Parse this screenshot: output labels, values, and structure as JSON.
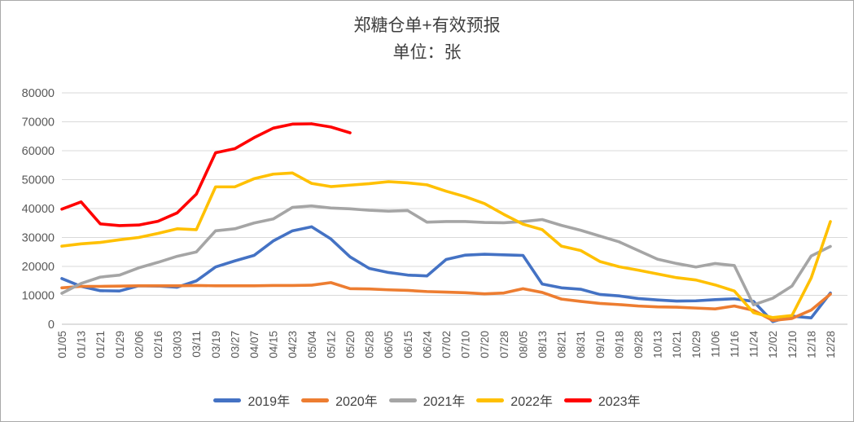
{
  "chart": {
    "title": "郑糖仓单+有效预报",
    "subtitle": "单位：张"
  },
  "chart_data": {
    "type": "line",
    "title": "郑糖仓单+有效预报",
    "unit_label": "单位：张",
    "grid": true,
    "legend_position": "bottom",
    "axis_text_color": "#595959",
    "grid_color": "#d9d9d9",
    "axis_line_color": "#bfbfbf",
    "ylim": [
      0,
      80000
    ],
    "y_ticks": [
      0,
      10000,
      20000,
      30000,
      40000,
      50000,
      60000,
      70000,
      80000
    ],
    "categories": [
      "01/05",
      "01/13",
      "01/21",
      "01/29",
      "02/06",
      "02/16",
      "03/03",
      "03/11",
      "03/19",
      "03/27",
      "04/07",
      "04/15",
      "04/23",
      "05/04",
      "05/12",
      "05/20",
      "05/28",
      "06/05",
      "06/15",
      "06/24",
      "07/02",
      "07/10",
      "07/20",
      "07/28",
      "08/05",
      "08/13",
      "08/21",
      "08/31",
      "09/10",
      "09/18",
      "09/28",
      "10/13",
      "10/21",
      "10/29",
      "11/06",
      "11/16",
      "11/24",
      "12/02",
      "12/10",
      "12/18",
      "12/28"
    ],
    "series": [
      {
        "name": "2019年",
        "color": "#4472C4",
        "values": [
          15800,
          13100,
          11600,
          11500,
          13300,
          13200,
          12800,
          15000,
          19800,
          21900,
          23800,
          28800,
          32300,
          33700,
          29500,
          23300,
          19300,
          17900,
          17000,
          16700,
          22400,
          23900,
          24200,
          24000,
          23800,
          13900,
          12600,
          12100,
          10300,
          9800,
          8900,
          8400,
          8000,
          8100,
          8500,
          8800,
          7900,
          900,
          2800,
          2200,
          10800
        ]
      },
      {
        "name": "2020年",
        "color": "#ED7D31",
        "values": [
          12600,
          13100,
          13100,
          13200,
          13300,
          13300,
          13300,
          13400,
          13300,
          13300,
          13300,
          13400,
          13400,
          13500,
          14400,
          12300,
          12200,
          11900,
          11700,
          11300,
          11100,
          10900,
          10500,
          10800,
          12300,
          11000,
          8700,
          7900,
          7200,
          6800,
          6300,
          6000,
          5900,
          5600,
          5300,
          6300,
          4800,
          1300,
          2000,
          4900,
          10400
        ]
      },
      {
        "name": "2021年",
        "color": "#A5A5A5",
        "values": [
          10700,
          14100,
          16300,
          17000,
          19500,
          21400,
          23500,
          25000,
          32300,
          33000,
          35000,
          36400,
          40400,
          40900,
          40200,
          39900,
          39400,
          39100,
          39300,
          35300,
          35500,
          35500,
          35200,
          35100,
          35500,
          36200,
          34200,
          32500,
          30500,
          28500,
          25500,
          22500,
          21000,
          19800,
          21000,
          20300,
          6700,
          9000,
          13200,
          23600,
          26900
        ]
      },
      {
        "name": "2022年",
        "color": "#FFC000",
        "values": [
          27000,
          27800,
          28300,
          29200,
          30000,
          31400,
          33000,
          32700,
          47500,
          47500,
          50300,
          51900,
          52300,
          48700,
          47600,
          48100,
          48600,
          49300,
          48900,
          48200,
          46000,
          44100,
          41700,
          38000,
          34600,
          32700,
          27000,
          25500,
          21700,
          19900,
          18700,
          17400,
          16100,
          15300,
          13600,
          11500,
          4000,
          2300,
          3000,
          16000,
          35500
        ]
      },
      {
        "name": "2023年",
        "color": "#FF0000",
        "values": [
          39800,
          42300,
          34700,
          34100,
          34300,
          35600,
          38500,
          45000,
          59300,
          60700,
          64500,
          67800,
          69200,
          69300,
          68200,
          66200,
          null,
          null,
          null,
          null,
          null,
          null,
          null,
          null,
          null,
          null,
          null,
          null,
          null,
          null,
          null,
          null,
          null,
          null,
          null,
          null,
          null,
          null,
          null,
          null,
          null
        ]
      }
    ]
  }
}
